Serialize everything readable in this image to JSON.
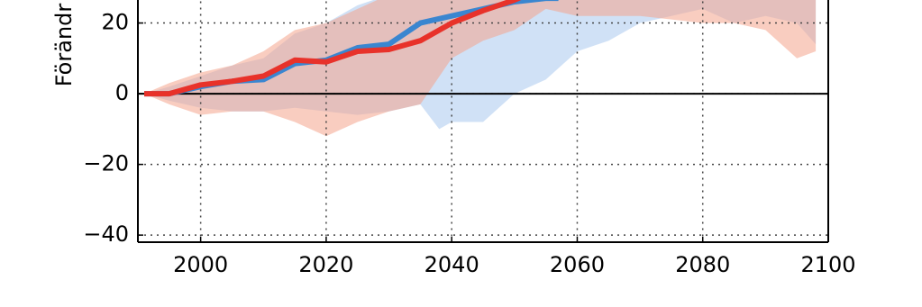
{
  "chart_data": {
    "type": "line",
    "ylabel": "Förändr",
    "xlim": [
      1990,
      2100
    ],
    "xticks": [
      2000,
      2020,
      2040,
      2060,
      2080,
      2100
    ],
    "ylim": [
      -42,
      60
    ],
    "yticks": [
      -40,
      -20,
      0,
      20
    ],
    "grid": true,
    "bands": [
      {
        "color": "#a9c9ee",
        "x": [
          1991,
          1995,
          2000,
          2005,
          2010,
          2015,
          2020,
          2025,
          2030,
          2035,
          2038,
          2040,
          2045,
          2050,
          2055,
          2060,
          2065,
          2070,
          2075,
          2080,
          2085,
          2090,
          2095,
          2098
        ],
        "lower": [
          0,
          -2,
          -4,
          -5,
          -5,
          -4,
          -5,
          -6,
          -5,
          -3,
          -10,
          -8,
          -8,
          0,
          4,
          12,
          15,
          20,
          22,
          24,
          20,
          22,
          20,
          14
        ],
        "upper": [
          0,
          2,
          5,
          8,
          10,
          17,
          20,
          25,
          28,
          28,
          28,
          28,
          28,
          28,
          28,
          28,
          28,
          28,
          28,
          28,
          28,
          28,
          28,
          28
        ]
      },
      {
        "color": "#f4a48c",
        "x": [
          1991,
          1995,
          2000,
          2005,
          2010,
          2015,
          2020,
          2025,
          2030,
          2035,
          2040,
          2045,
          2050,
          2055,
          2060,
          2065,
          2070,
          2075,
          2080,
          2085,
          2090,
          2095,
          2098
        ],
        "lower": [
          0,
          -3,
          -6,
          -5,
          -5,
          -8,
          -12,
          -8,
          -5,
          -3,
          10,
          15,
          18,
          24,
          22,
          22,
          22,
          21,
          20,
          20,
          18,
          10,
          12
        ],
        "upper": [
          0,
          3,
          6,
          8,
          12,
          18,
          20,
          24,
          28,
          28,
          28,
          28,
          28,
          28,
          28,
          28,
          28,
          28,
          28,
          28,
          28,
          28,
          28
        ]
      }
    ],
    "series": [
      {
        "color": "#3a86d0",
        "x": [
          1991,
          1995,
          2000,
          2005,
          2010,
          2015,
          2020,
          2025,
          2030,
          2035,
          2040,
          2045,
          2050,
          2055,
          2057
        ],
        "values": [
          0,
          0,
          2,
          3.5,
          4,
          8.5,
          9.5,
          13,
          14,
          20,
          22,
          24,
          26,
          27,
          27
        ]
      },
      {
        "color": "#e8322a",
        "x": [
          1991,
          1995,
          2000,
          2005,
          2010,
          2015,
          2020,
          2025,
          2030,
          2035,
          2040,
          2045,
          2050,
          2052
        ],
        "values": [
          0,
          0,
          2.5,
          3.5,
          5,
          9.5,
          9,
          12,
          12.5,
          15,
          20,
          23.5,
          26.5,
          28
        ]
      }
    ]
  }
}
